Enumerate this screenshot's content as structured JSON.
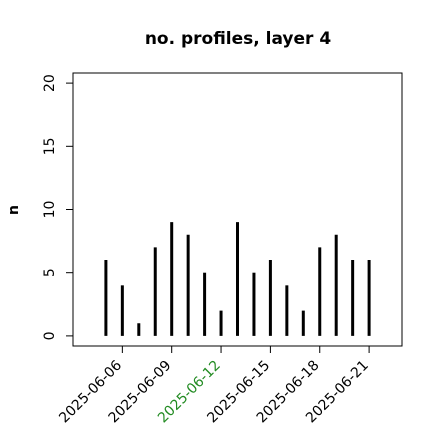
{
  "chart_data": {
    "type": "bar",
    "title": "no. profiles, layer 4",
    "y_label": "n",
    "x": [
      "2025-06-05",
      "2025-06-06",
      "2025-06-07",
      "2025-06-08",
      "2025-06-09",
      "2025-06-10",
      "2025-06-11",
      "2025-06-12",
      "2025-06-13",
      "2025-06-14",
      "2025-06-15",
      "2025-06-16",
      "2025-06-17",
      "2025-06-18",
      "2025-06-19",
      "2025-06-20",
      "2025-06-21"
    ],
    "values": [
      6,
      4,
      1,
      7,
      9,
      8,
      5,
      2,
      9,
      5,
      6,
      4,
      2,
      7,
      8,
      6,
      6
    ],
    "color": "#000000",
    "xlim": [
      "2025-06-03",
      "2025-06-23"
    ],
    "xticks": [
      "2025-06-06",
      "2025-06-09",
      "2025-06-12",
      "2025-06-15",
      "2025-06-18",
      "2025-06-21"
    ],
    "xtick_colors": [
      "#000000",
      "#000000",
      "#228b22",
      "#000000",
      "#000000",
      "#000000"
    ],
    "ylim": [
      -0.8,
      20.8
    ],
    "yticks": [
      0,
      5,
      10,
      15,
      20
    ]
  }
}
